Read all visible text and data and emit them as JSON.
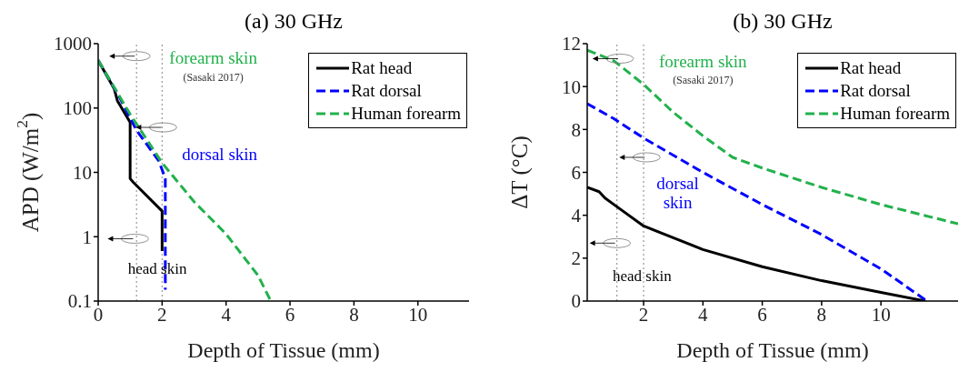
{
  "chart_data": [
    {
      "type": "line",
      "title": "(a) 30 GHz",
      "xlabel": "Depth of Tissue (mm)",
      "ylabel": "APD (W/m$^{2}$)",
      "log": "y",
      "xlim": [
        0,
        11.6
      ],
      "xticks": [
        0,
        2,
        4,
        6,
        8,
        10
      ],
      "ylim": [
        0.1,
        1000
      ],
      "yticks": [
        0.1,
        1,
        10,
        100,
        1000
      ],
      "legend": "top right",
      "marker": "none",
      "series": [
        {
          "name": "Rat head",
          "color": "#000000",
          "line_style": "solid",
          "x": [
            0,
            0.5,
            0.6,
            1.0,
            1.0,
            1.1,
            2.0,
            2.0
          ],
          "values": [
            550,
            200,
            130,
            60,
            8,
            7,
            2.5,
            0.6
          ]
        },
        {
          "name": "Rat dorsal",
          "color": "#0000ff",
          "line_style": "dashed",
          "x": [
            0,
            0.6,
            1.0,
            1.2,
            1.9,
            2.1,
            2.1
          ],
          "values": [
            550,
            170,
            70,
            45,
            15,
            8,
            0.15
          ]
        },
        {
          "name": "Human forearm",
          "color": "#22b14c",
          "line_style": "dashed",
          "x": [
            0,
            1,
            2,
            3,
            4,
            5,
            5.4
          ],
          "values": [
            550,
            80,
            14,
            3.5,
            1.1,
            0.25,
            0.1
          ]
        }
      ],
      "ref_lines": [
        {
          "axis": "x",
          "value": 1.2,
          "color": "#999999",
          "line_style": "dotted"
        },
        {
          "axis": "x",
          "value": 2.0,
          "color": "#999999",
          "line_style": "dotted"
        }
      ],
      "annotations": [
        "forearm skin",
        "(Sasaki 2017)",
        "dorsal skin",
        "head skin"
      ]
    },
    {
      "type": "line",
      "title": "(b) 30 GHz",
      "xlabel": "Depth of Tissue (mm)",
      "ylabel": "ΔT (°C)",
      "xlim": [
        0.1,
        12.6
      ],
      "xticks": [
        2,
        4,
        6,
        8,
        10
      ],
      "ylim": [
        0,
        12
      ],
      "yticks": [
        0,
        2,
        4,
        6,
        8,
        10,
        12
      ],
      "legend": "top right",
      "marker": "none",
      "series": [
        {
          "name": "Rat head",
          "color": "#000000",
          "line_style": "solid",
          "x": [
            0.1,
            0.5,
            0.7,
            1,
            2,
            4,
            6,
            8,
            10,
            11.5
          ],
          "values": [
            5.3,
            5.1,
            4.8,
            4.5,
            3.5,
            2.4,
            1.6,
            0.95,
            0.4,
            0
          ]
        },
        {
          "name": "Rat dorsal",
          "color": "#0000ff",
          "line_style": "dashed",
          "x": [
            0.1,
            1,
            2,
            4,
            6,
            8,
            10,
            11.5
          ],
          "values": [
            9.2,
            8.5,
            7.6,
            6.0,
            4.5,
            3.1,
            1.5,
            0.05
          ]
        },
        {
          "name": "Human forearm",
          "color": "#22b14c",
          "line_style": "dashed",
          "x": [
            0.1,
            1,
            2,
            3,
            4,
            5,
            6,
            8,
            10,
            12.6
          ],
          "values": [
            11.7,
            11.2,
            10.1,
            8.8,
            7.7,
            6.7,
            6.2,
            5.3,
            4.5,
            3.6
          ]
        }
      ],
      "ref_lines": [
        {
          "axis": "x",
          "value": 1.1,
          "color": "#999999",
          "line_style": "dotted"
        },
        {
          "axis": "x",
          "value": 2.0,
          "color": "#999999",
          "line_style": "dotted"
        }
      ],
      "annotations": [
        "forearm skin",
        "(Sasaki 2017)",
        "dorsal\nskin",
        "head skin"
      ]
    }
  ]
}
